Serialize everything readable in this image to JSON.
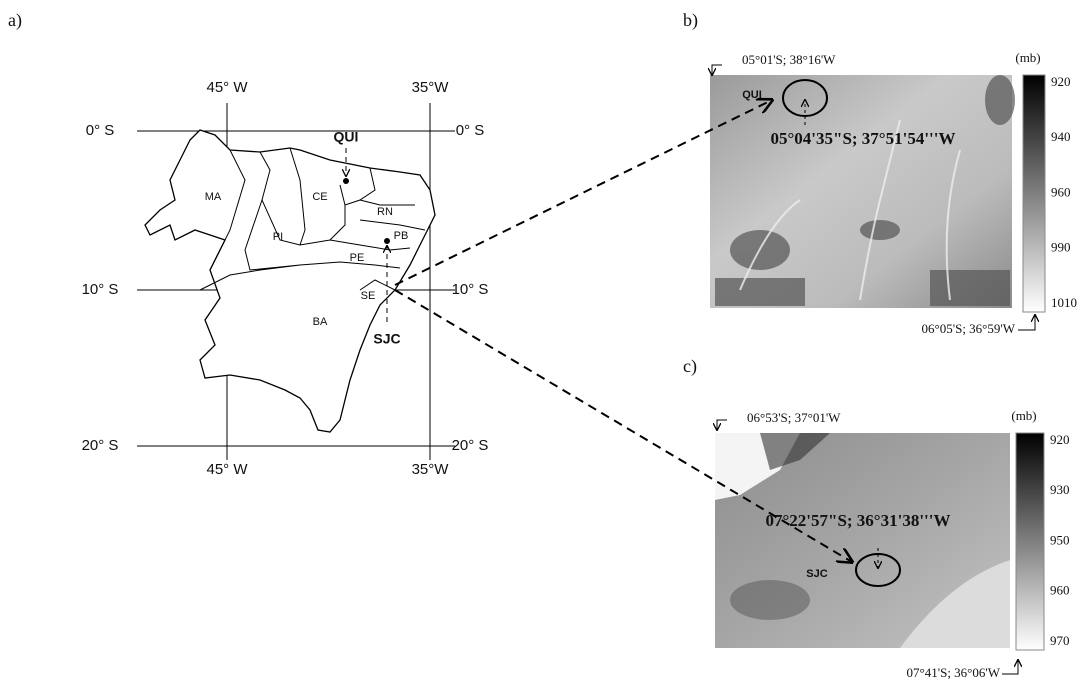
{
  "panel_a": {
    "label": "a)",
    "lon_labels": [
      "45° W",
      "35°W"
    ],
    "lat_labels": [
      "0° S",
      "10° S",
      "20° S"
    ],
    "states": [
      "MA",
      "PI",
      "CE",
      "RN",
      "PB",
      "PE",
      "SE",
      "BA"
    ],
    "sites": [
      "QUI",
      "SJC"
    ]
  },
  "panel_b": {
    "label": "b)",
    "corner_top": "05°01'S; 38°16'W",
    "corner_bottom": "06°05'S; 36°59'W",
    "unit": "(mb)",
    "colorbar_ticks": [
      920,
      940,
      960,
      990,
      1010
    ],
    "site": "QUI",
    "coordinates": "05°04'35\"S; 37°51'54'''W"
  },
  "panel_c": {
    "label": "c)",
    "corner_top": "06°53'S; 37°01'W",
    "corner_bottom": "07°41'S; 36°06'W",
    "unit": "(mb)",
    "colorbar_ticks": [
      920,
      930,
      950,
      960,
      970
    ],
    "site": "SJC",
    "coordinates": "07°22'57\"S; 36°31'38'''W"
  }
}
